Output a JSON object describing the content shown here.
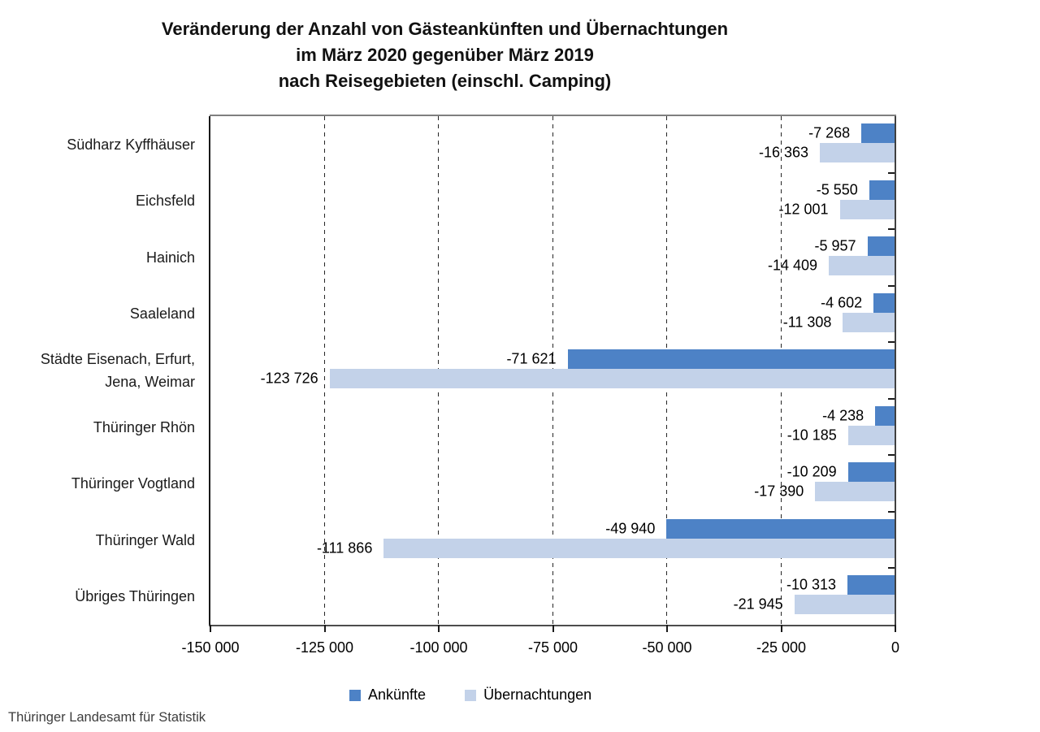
{
  "title": {
    "line1": "Veränderung der Anzahl von Gästeankünften und Übernachtungen",
    "line2": "im März 2020 gegenüber März 2019",
    "line3": "nach Reisegebieten (einschl. Camping)"
  },
  "footer": {
    "source": "Thüringer Landesamt für Statistik"
  },
  "legend": [
    {
      "label": "Ankünfte",
      "color": "#4d82c6"
    },
    {
      "label": "Übernachtungen",
      "color": "#c3d2e9"
    }
  ],
  "colors": {
    "ankuenfte": "#4d82c6",
    "uebernachtungen": "#c3d2e9",
    "axis": "#404040",
    "grid": "#262626"
  },
  "chart_data": {
    "type": "bar",
    "orientation": "horizontal",
    "title": "Veränderung der Anzahl von Gästeankünften und Übernachtungen im März 2020 gegenüber März 2019 nach Reisegebieten (einschl. Camping)",
    "categories": [
      "Südharz Kyffhäuser",
      "Eichsfeld",
      "Hainich",
      "Saaleland",
      "Städte Eisenach, Erfurt, Jena, Weimar",
      "Thüringer Rhön",
      "Thüringer Vogtland",
      "Thüringer Wald",
      "Übriges Thüringen"
    ],
    "series": [
      {
        "name": "Ankünfte",
        "color": "#4d82c6",
        "values": [
          -7268,
          -5550,
          -5957,
          -4602,
          -71621,
          -4238,
          -10209,
          -49940,
          -10313
        ],
        "labels": [
          "-7 268",
          "-5 550",
          "-5 957",
          "-4 602",
          "-71 621",
          "-4 238",
          "-10 209",
          "-49 940",
          "-10 313"
        ]
      },
      {
        "name": "Übernachtungen",
        "color": "#c3d2e9",
        "values": [
          -16363,
          -12001,
          -14409,
          -11308,
          -123726,
          -10185,
          -17390,
          -111866,
          -21945
        ],
        "labels": [
          "-16 363",
          "-12 001",
          "-14 409",
          "-11 308",
          "-123 726",
          "-10 185",
          "-17 390",
          "-111 866",
          "-21 945"
        ]
      }
    ],
    "xlim": [
      -150000,
      0
    ],
    "x_ticks": [
      "-150 000",
      "-125 000",
      "-100 000",
      "-75 000",
      "-50 000",
      "-25 000",
      "0"
    ],
    "grid": "vertical-dashed",
    "legend_position": "bottom"
  }
}
